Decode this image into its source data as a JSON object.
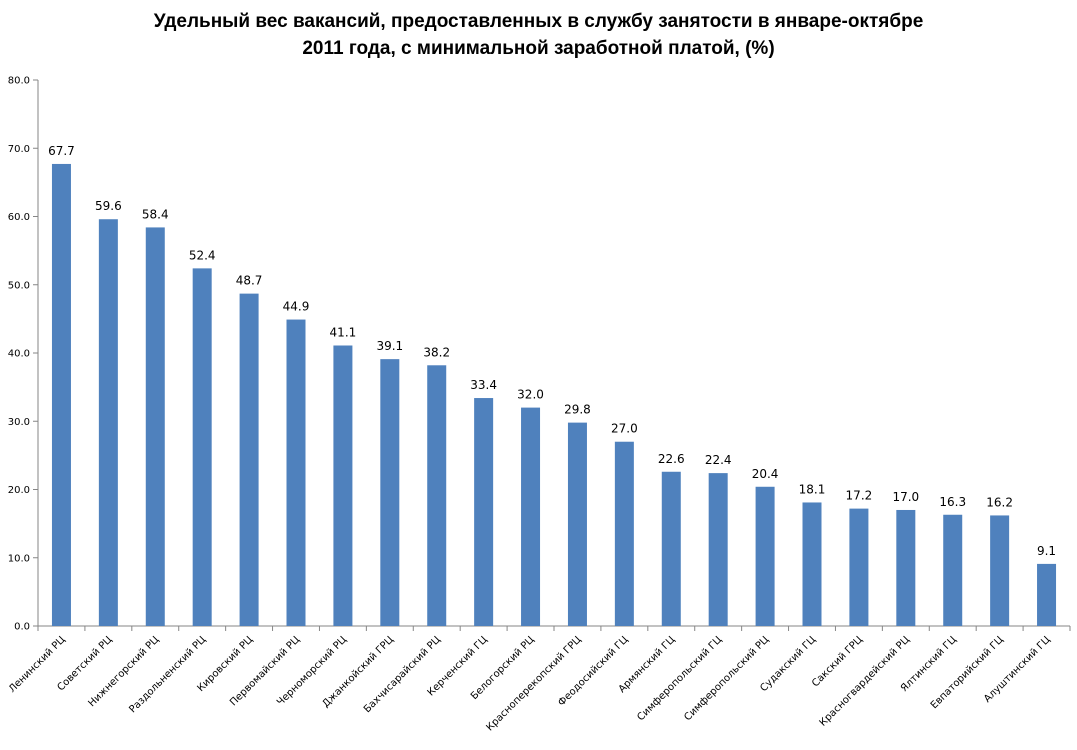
{
  "chart_data": {
    "type": "bar",
    "title_lines": [
      "Удельный вес вакансий, предоставленных в службу занятости в январе-октябре",
      "2011 года, с минимальной заработной платой, (%)"
    ],
    "xlabel": "",
    "ylabel": "",
    "ylim": [
      0,
      80
    ],
    "yticks": [
      "0.0",
      "10.0",
      "20.0",
      "30.0",
      "40.0",
      "50.0",
      "60.0",
      "70.0",
      "80.0"
    ],
    "grid": false,
    "legend": "none",
    "bar_color": "#4f81bd",
    "categories": [
      "Ленинский РЦ",
      "Советский РЦ",
      "Нижнегорский РЦ",
      "Раздольненский РЦ",
      "Кировский РЦ",
      "Первомайский РЦ",
      "Черноморский РЦ",
      "Джанкойский ГРЦ",
      "Бахчисарайский РЦ",
      "Керченский ГЦ",
      "Белогорский РЦ",
      "Красноперекопский ГРЦ",
      "Феодосийский ГЦ",
      "Армянский ГЦ",
      "Симферопольский ГЦ",
      "Симферопольский РЦ",
      "Судакский ГЦ",
      "Сакский ГРЦ",
      "Красногвардейский РЦ",
      "Ялтинский ГЦ",
      "Евпаторийский ГЦ",
      "Алуштинский ГЦ"
    ],
    "values": [
      67.7,
      59.6,
      58.4,
      52.4,
      48.7,
      44.9,
      41.1,
      39.1,
      38.2,
      33.4,
      32.0,
      29.8,
      27.0,
      22.6,
      22.4,
      20.4,
      18.1,
      17.2,
      17.0,
      16.3,
      16.2,
      9.1
    ],
    "value_labels": [
      "67.7",
      "59.6",
      "58.4",
      "52.4",
      "48.7",
      "44.9",
      "41.1",
      "39.1",
      "38.2",
      "33.4",
      "32.0",
      "29.8",
      "27.0",
      "22.6",
      "22.4",
      "20.4",
      "18.1",
      "17.2",
      "17.0",
      "16.3",
      "16.2",
      "9.1"
    ]
  }
}
